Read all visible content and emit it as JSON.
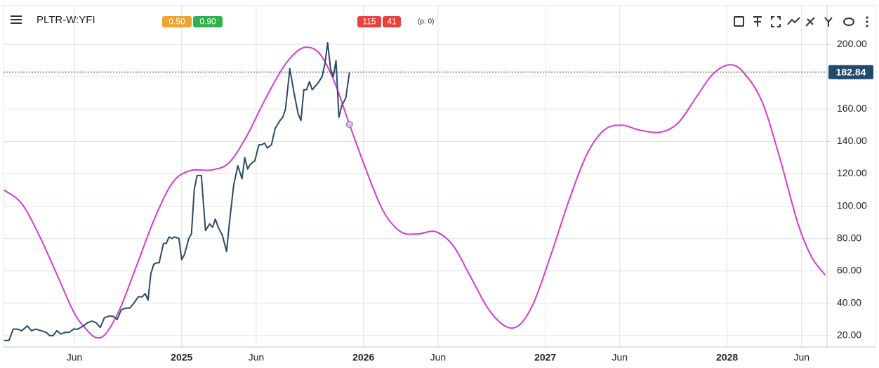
{
  "header": {
    "symbol": "PLTR-W:YFI",
    "badges_left": [
      {
        "text": "0.50",
        "color": "#f0a330"
      },
      {
        "text": "0.90",
        "color": "#2fb24c"
      }
    ],
    "badges_mid": [
      {
        "text": "115",
        "color": "#e8423f"
      },
      {
        "text": "41",
        "color": "#e8423f"
      }
    ],
    "p_label": "(p: 0)"
  },
  "chart_data": {
    "type": "line",
    "xlim": [
      2024.02,
      2028.55
    ],
    "xticks": [
      {
        "value": 2024.41,
        "label": "Jun"
      },
      {
        "value": 2025,
        "label": "2025"
      },
      {
        "value": 2025.41,
        "label": "Jun"
      },
      {
        "value": 2026,
        "label": "2026"
      },
      {
        "value": 2026.41,
        "label": "Jun"
      },
      {
        "value": 2027,
        "label": "2027"
      },
      {
        "value": 2027.41,
        "label": "Jun"
      },
      {
        "value": 2028,
        "label": "2028"
      },
      {
        "value": 2028.41,
        "label": "Jun"
      }
    ],
    "ylim": [
      13,
      224
    ],
    "yticks": [
      {
        "value": 20,
        "label": "20.00"
      },
      {
        "value": 40,
        "label": "40.00"
      },
      {
        "value": 60,
        "label": "60.00"
      },
      {
        "value": 80,
        "label": "80.00"
      },
      {
        "value": 100,
        "label": "100.00"
      },
      {
        "value": 120,
        "label": "120.00"
      },
      {
        "value": 140,
        "label": "140.00"
      },
      {
        "value": 160,
        "label": "160.00"
      },
      {
        "value": 180,
        "label": "180.00"
      },
      {
        "value": 200,
        "label": "200.00"
      }
    ],
    "grid": true,
    "series": [
      {
        "color": "#d53ad5",
        "x": [
          2024.023,
          2024.12,
          2024.216,
          2024.313,
          2024.409,
          2024.486,
          2024.533,
          2024.583,
          2024.66,
          2024.757,
          2024.853,
          2024.95,
          2025.046,
          2025.162,
          2025.259,
          2025.355,
          2025.452,
          2025.548,
          2025.625,
          2025.691,
          2025.761,
          2025.838,
          2025.923,
          2026.012,
          2026.108,
          2026.205,
          2026.301,
          2026.398,
          2026.494,
          2026.591,
          2026.687,
          2026.784,
          2026.861,
          2026.938,
          2027.035,
          2027.131,
          2027.228,
          2027.324,
          2027.421,
          2027.517,
          2027.633,
          2027.73,
          2027.826,
          2027.923,
          2028.019,
          2028.097,
          2028.193,
          2028.29,
          2028.386,
          2028.463,
          2028.541
        ],
        "values": [
          110,
          101.6,
          82,
          58,
          34,
          22.6,
          18.7,
          21.3,
          36.5,
          64.7,
          92.9,
          114.6,
          122,
          122.4,
          126.7,
          142.8,
          164.5,
          184,
          194.8,
          198.3,
          194,
          177.5,
          150.6,
          123.2,
          97.2,
          84.2,
          82.9,
          84.2,
          75.5,
          56,
          36.5,
          25.6,
          26.9,
          40.8,
          71.2,
          103.7,
          131.9,
          147.1,
          150.1,
          147.1,
          145.8,
          151.4,
          166.6,
          181.8,
          187.5,
          181.8,
          164.5,
          129.8,
          90.7,
          69,
          57.3
        ]
      },
      {
        "color": "#2c4a66",
        "x": [
          2024.023,
          2024.05,
          2024.073,
          2024.097,
          2024.12,
          2024.151,
          2024.174,
          2024.197,
          2024.228,
          2024.255,
          2024.274,
          2024.293,
          2024.313,
          2024.336,
          2024.359,
          2024.382,
          2024.405,
          2024.429,
          2024.459,
          2024.483,
          2024.506,
          2024.529,
          2024.552,
          2024.575,
          2024.598,
          2024.622,
          2024.645,
          2024.668,
          2024.691,
          2024.714,
          2024.737,
          2024.761,
          2024.784,
          2024.799,
          2024.815,
          2024.83,
          2024.846,
          2024.861,
          2024.876,
          2024.9,
          2024.915,
          2024.931,
          2024.946,
          2024.961,
          2024.985,
          2025.0,
          2025.015,
          2025.039,
          2025.054,
          2025.069,
          2025.085,
          2025.108,
          2025.131,
          2025.154,
          2025.17,
          2025.185,
          2025.201,
          2025.224,
          2025.247,
          2025.263,
          2025.286,
          2025.309,
          2025.332,
          2025.347,
          2025.363,
          2025.378,
          2025.402,
          2025.425,
          2025.44,
          2025.456,
          2025.471,
          2025.494,
          2025.514,
          2025.541,
          2025.556,
          2025.571,
          2025.595,
          2025.618,
          2025.641,
          2025.656,
          2025.672,
          2025.687,
          2025.703,
          2025.718,
          2025.734,
          2025.749,
          2025.772,
          2025.788,
          2025.803,
          2025.819,
          2025.834,
          2025.849,
          2025.865,
          2025.88,
          2025.903,
          2025.923
        ],
        "values": [
          17,
          17,
          24,
          24,
          23,
          26,
          23,
          24,
          23,
          22,
          20,
          20,
          23,
          21,
          22,
          22,
          24,
          24,
          26,
          28,
          29,
          28,
          25,
          31,
          32,
          32,
          30,
          36,
          37,
          37,
          40,
          44,
          44,
          46,
          42,
          58,
          64,
          65,
          65,
          77,
          77,
          81,
          80,
          81,
          80,
          67,
          70,
          80,
          83,
          110,
          119,
          119,
          85,
          89,
          87,
          92,
          87,
          82,
          72,
          90,
          113,
          125,
          117,
          130,
          123,
          126,
          128,
          138,
          138,
          139,
          136,
          138,
          148,
          153,
          155,
          160,
          185,
          170,
          157,
          153,
          172,
          172,
          177,
          172,
          174,
          176,
          180,
          188,
          201,
          185,
          180,
          190,
          155,
          162,
          167,
          182.84
        ]
      }
    ]
  }
}
